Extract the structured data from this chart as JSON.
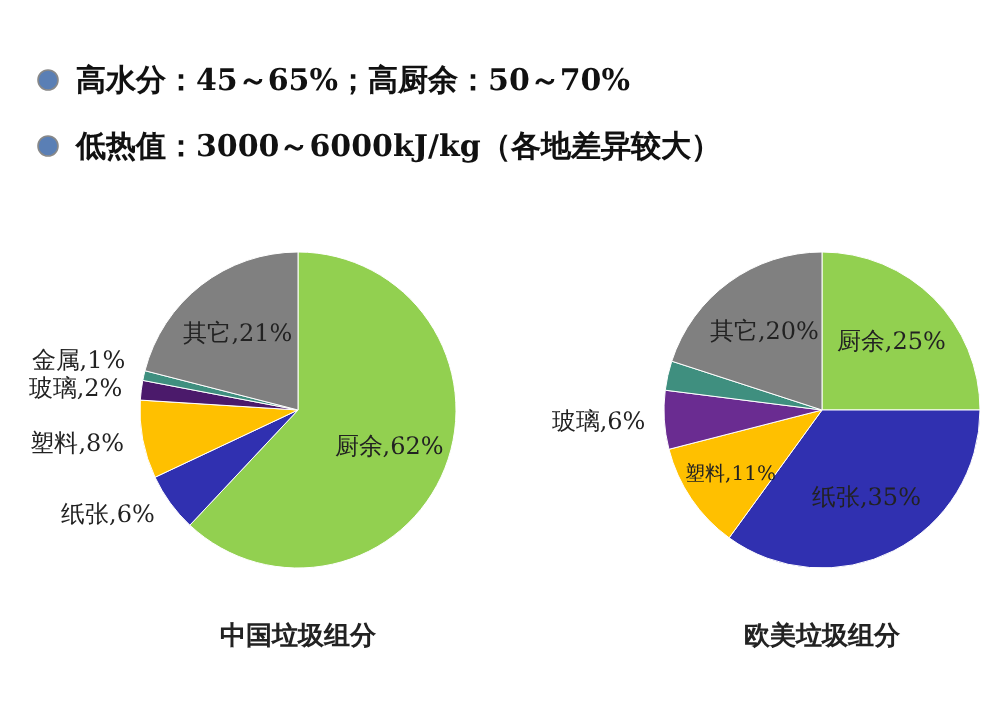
{
  "chart_data": [
    {
      "type": "other",
      "annotations": [
        "高水分：45～65%；高厨余：50～70%",
        "低热值：3000～6000kJ/kg（各地差异较大）"
      ]
    },
    {
      "type": "pie",
      "title": "中国垃圾组分",
      "categories": [
        "厨余",
        "纸张",
        "塑料",
        "玻璃",
        "金属",
        "其它"
      ],
      "values": [
        62,
        6,
        8,
        2,
        1,
        21
      ],
      "value_labels": [
        "62%",
        "6%",
        "8%",
        "2%",
        "1%",
        "21%"
      ],
      "colors": [
        "#92d050",
        "#3030b0",
        "#ffc000",
        "#4b1a6b",
        "#3f8f7f",
        "#808080"
      ]
    },
    {
      "type": "pie",
      "title": "欧美垃圾组分",
      "categories": [
        "厨余",
        "纸张",
        "塑料",
        "玻璃",
        null,
        "其它"
      ],
      "values": [
        25,
        35,
        11,
        6,
        3,
        20
      ],
      "value_labels": [
        "25%",
        "35%",
        "11%",
        "6%",
        null,
        "20%"
      ],
      "colors": [
        "#92d050",
        "#3030b0",
        "#ffc000",
        "#6a2c91",
        "#3f8f7f",
        "#808080"
      ]
    }
  ]
}
